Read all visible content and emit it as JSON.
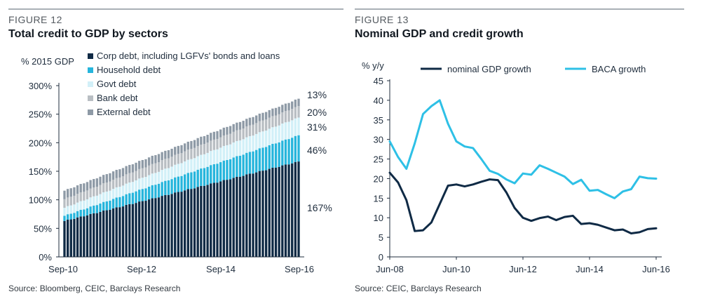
{
  "colors": {
    "corp": "#0f2a45",
    "household": "#26b5dc",
    "govt": "#d2f0f8",
    "bank": "#b9bec3",
    "external": "#8e9aa6",
    "baca": "#2ec0e6",
    "gdp": "#0f2a45"
  },
  "left": {
    "figure_label": "FIGURE 12",
    "title": "Total credit to GDP by sectors",
    "source": "Source: Bloomberg, CEIC, Barclays Research"
  },
  "right": {
    "figure_label": "FIGURE 13",
    "title": "Nominal GDP and credit growth",
    "source": "Source: CEIC, Barclays Research"
  },
  "chart_data": [
    {
      "type": "bar",
      "stacked": true,
      "ylabel": "% 2015 GDP",
      "ylim": [
        0,
        300
      ],
      "yticks": [
        0,
        50,
        100,
        150,
        200,
        250,
        300
      ],
      "ytick_labels": [
        "0%",
        "50%",
        "100%",
        "150%",
        "200%",
        "250%",
        "300%"
      ],
      "xtick_labels": [
        "Sep-10",
        "Sep-12",
        "Sep-14",
        "Sep-16"
      ],
      "legend": [
        "Corp debt, including LGFVs' bonds and loans",
        "Household debt",
        "Govt debt",
        "Bank debt",
        "External debt"
      ],
      "legend_position": "top-left",
      "periods": 73,
      "start": {
        "corp": 63,
        "household": 9,
        "govt": 14,
        "bank": 15,
        "external": 15
      },
      "end": {
        "corp": 167,
        "household": 46,
        "govt": 31,
        "bank": 20,
        "external": 13
      },
      "end_labels": [
        "13%",
        "20%",
        "31%",
        "46%",
        "167%"
      ]
    },
    {
      "type": "line",
      "ylabel": "% y/y",
      "ylim": [
        0,
        45
      ],
      "yticks": [
        0,
        5,
        10,
        15,
        20,
        25,
        30,
        35,
        40,
        45
      ],
      "xlim": [
        2008.42,
        2016.42
      ],
      "xticks": [
        2008.42,
        2010.42,
        2012.42,
        2014.42,
        2016.42
      ],
      "xtick_labels": [
        "Jun-08",
        "Jun-10",
        "Jun-12",
        "Jun-14",
        "Jun-16"
      ],
      "legend_position": "top",
      "series": [
        {
          "name": "nominal GDP growth",
          "x": [
            2008.42,
            2008.67,
            2008.92,
            2009.17,
            2009.42,
            2009.67,
            2009.92,
            2010.17,
            2010.42,
            2010.67,
            2010.92,
            2011.17,
            2011.42,
            2011.67,
            2011.92,
            2012.17,
            2012.42,
            2012.67,
            2012.92,
            2013.17,
            2013.42,
            2013.67,
            2013.92,
            2014.17,
            2014.42,
            2014.67,
            2014.92,
            2015.17,
            2015.42,
            2015.67,
            2015.92,
            2016.17,
            2016.42
          ],
          "y": [
            21.5,
            19.0,
            14.5,
            6.6,
            6.8,
            8.8,
            13.5,
            18.2,
            18.5,
            18.0,
            18.5,
            19.2,
            19.8,
            19.6,
            16.5,
            12.5,
            10.0,
            9.2,
            9.9,
            10.3,
            9.4,
            10.2,
            10.5,
            8.4,
            8.6,
            8.2,
            7.5,
            6.8,
            7.0,
            6.0,
            6.3,
            7.1,
            7.3
          ]
        },
        {
          "name": "BACA growth",
          "x": [
            2008.42,
            2008.67,
            2008.92,
            2009.17,
            2009.42,
            2009.67,
            2009.92,
            2010.17,
            2010.42,
            2010.67,
            2010.92,
            2011.17,
            2011.42,
            2011.67,
            2011.92,
            2012.17,
            2012.42,
            2012.67,
            2012.92,
            2013.17,
            2013.42,
            2013.67,
            2013.92,
            2014.17,
            2014.42,
            2014.67,
            2014.92,
            2015.17,
            2015.42,
            2015.67,
            2015.92,
            2016.17,
            2016.42
          ],
          "y": [
            29.5,
            25.5,
            22.5,
            29.0,
            36.5,
            38.5,
            40.0,
            34.0,
            29.5,
            28.2,
            27.8,
            25.0,
            22.0,
            21.2,
            19.8,
            18.8,
            21.3,
            21.0,
            23.4,
            22.5,
            21.5,
            20.5,
            18.6,
            19.7,
            16.9,
            17.1,
            16.0,
            15.0,
            16.7,
            17.3,
            20.5,
            20.1,
            20.0
          ]
        }
      ]
    }
  ]
}
